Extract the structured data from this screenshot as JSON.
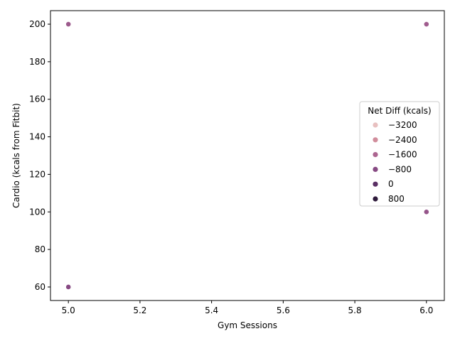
{
  "chart_data": {
    "type": "scatter",
    "xlabel": "Gym Sessions",
    "ylabel": "Cardio (kcals from Fitbit)",
    "xlim": [
      4.95,
      6.05
    ],
    "ylim": [
      52.8,
      207.2
    ],
    "xticks": [
      5.0,
      5.2,
      5.4,
      5.6,
      5.8,
      6.0
    ],
    "yticks": [
      60,
      80,
      100,
      120,
      140,
      160,
      180,
      200
    ],
    "xtick_labels": [
      "5.0",
      "5.2",
      "5.4",
      "5.6",
      "5.8",
      "6.0"
    ],
    "ytick_labels": [
      "60",
      "80",
      "100",
      "120",
      "140",
      "160",
      "180",
      "200"
    ],
    "grid": false,
    "legend": {
      "title": "Net Diff (kcals)",
      "placement": "center-right",
      "entries": [
        {
          "label": "−3200",
          "color": "#e8c0c0"
        },
        {
          "label": "−2400",
          "color": "#d18d9c"
        },
        {
          "label": "−1600",
          "color": "#ac6590"
        },
        {
          "label": "−800",
          "color": "#874a83"
        },
        {
          "label": "0",
          "color": "#5a2f64"
        },
        {
          "label": "800",
          "color": "#2e1a3b"
        }
      ]
    },
    "points": [
      {
        "x": 5.0,
        "y": 200,
        "color": "#9c5a8c"
      },
      {
        "x": 5.0,
        "y": 60,
        "color": "#874a83"
      },
      {
        "x": 6.0,
        "y": 200,
        "color": "#a05c8e"
      },
      {
        "x": 6.0,
        "y": 100,
        "color": "#95558a"
      }
    ]
  }
}
